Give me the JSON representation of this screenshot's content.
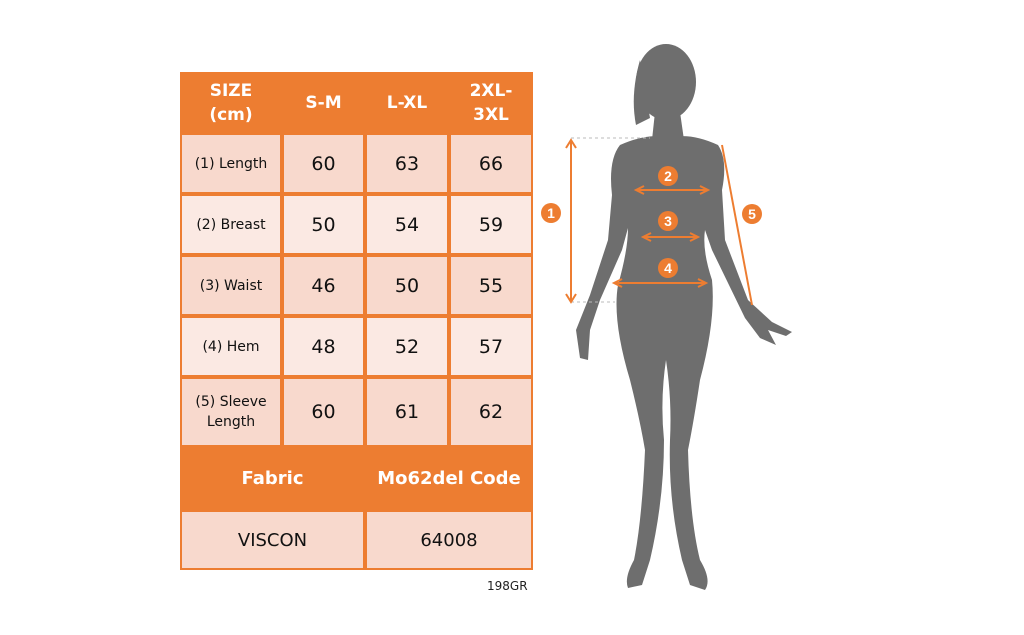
{
  "table": {
    "headers": [
      "SIZE (cm)",
      "S-M",
      "L-XL",
      "2XL-3XL"
    ],
    "header_lines": [
      [
        "SIZE",
        "(cm)"
      ],
      [
        "S-M"
      ],
      [
        "L-XL"
      ],
      [
        "2XL-",
        "3XL"
      ]
    ],
    "rows": [
      {
        "label": "(1) Length",
        "values": [
          "60",
          "63",
          "66"
        ]
      },
      {
        "label": "(2) Breast",
        "values": [
          "50",
          "54",
          "59"
        ]
      },
      {
        "label": "(3) Waist",
        "values": [
          "46",
          "50",
          "55"
        ]
      },
      {
        "label": "(4) Hem",
        "values": [
          "48",
          "52",
          "57"
        ]
      },
      {
        "label": "(5) Sleeve Length",
        "label_lines": [
          "(5) Sleeve",
          "Length"
        ],
        "values": [
          "60",
          "61",
          "62"
        ]
      }
    ]
  },
  "fabric": {
    "headers": [
      "Fabric",
      "Mo62del Code"
    ],
    "values": [
      "VISCON",
      "64008"
    ]
  },
  "footer_code": "198GR",
  "figure": {
    "markers": [
      "1",
      "2",
      "3",
      "4",
      "5"
    ],
    "icon": "female-silhouette-icon"
  },
  "colors": {
    "accent": "#ed7d31",
    "row_dark": "#f8d9cd",
    "row_light": "#fbe9e3",
    "silhouette": "#6e6e6e"
  }
}
